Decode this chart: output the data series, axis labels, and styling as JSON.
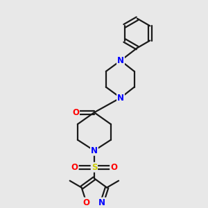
{
  "bg_color": "#e8e8e8",
  "bond_color": "#1a1a1a",
  "bond_width": 1.6,
  "atom_colors": {
    "N": "#0000ff",
    "O": "#ff0000",
    "S": "#cccc00",
    "C": "#1a1a1a"
  },
  "font_size_atom": 8.5,
  "fig_size": [
    3.0,
    3.0
  ],
  "dpi": 100
}
